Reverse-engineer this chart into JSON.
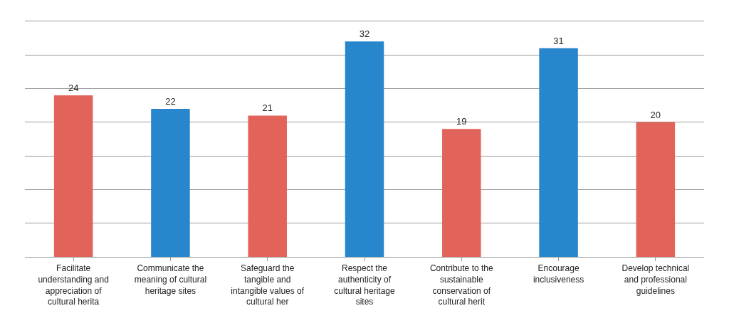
{
  "chart_data": {
    "type": "bar",
    "categories": [
      "Facilitate understanding and appreciation of cultural herita",
      "Communicate the meaning of cultural heritage sites",
      "Safeguard the tangible and intangible values of cultural her",
      "Respect the authenticity of cultural heritage sites",
      "Contribute to the sustainable conservation of cultural herit",
      "Encourage inclusiveness",
      "Develop technical and professional guidelines"
    ],
    "values": [
      24,
      22,
      21,
      32,
      19,
      31,
      20
    ],
    "colors": [
      "#e2635a",
      "#2887cc",
      "#e2635a",
      "#2887cc",
      "#e2635a",
      "#2887cc",
      "#e2635a"
    ],
    "ylim": [
      0,
      35
    ],
    "yticks": [
      {
        "value": 0,
        "label": null
      },
      {
        "value": 5,
        "label": null
      },
      {
        "value": 10,
        "label": null
      },
      {
        "value": 15,
        "label": null
      },
      {
        "value": 20,
        "label": null
      },
      {
        "value": 25,
        "label": null
      },
      {
        "value": 30,
        "label": null
      },
      {
        "value": 35,
        "label": null
      }
    ],
    "grid": "y",
    "data_labels": true,
    "tick_labels": "x",
    "legend": false
  }
}
